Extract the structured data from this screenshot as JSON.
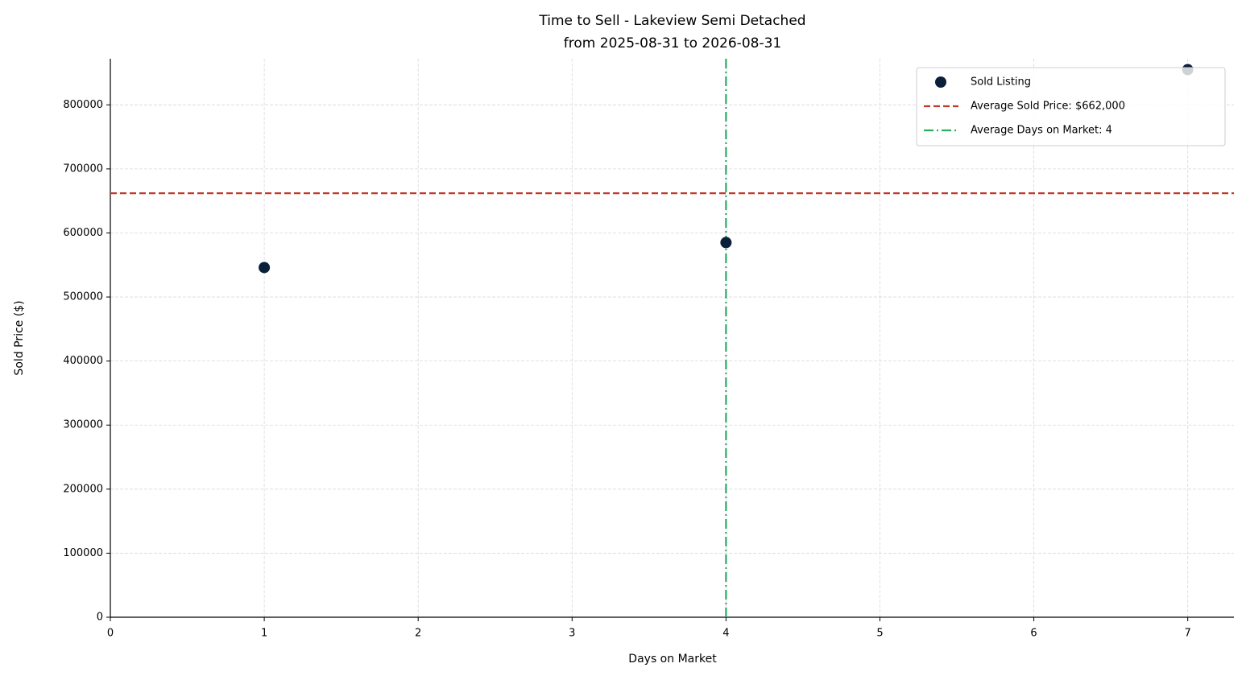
{
  "chart_data": {
    "type": "scatter",
    "title": "Time to Sell - Lakeview Semi Detached",
    "subtitle": "from 2025-08-31 to 2026-08-31",
    "xlabel": "Days on Market",
    "ylabel": "Sold Price ($)",
    "x": [
      1,
      4,
      7
    ],
    "series": [
      {
        "name": "Sold Listing",
        "color": "#0b1f3a",
        "values": [
          546000,
          585000,
          855000
        ]
      }
    ],
    "hline": {
      "value": 662000,
      "label": "Average Sold Price: $662,000",
      "color": "#c0392b"
    },
    "vline": {
      "value": 4,
      "label": "Average Days on Market: 4",
      "color": "#27ae60"
    },
    "xlim": [
      0,
      7.3
    ],
    "ylim": [
      0,
      872000
    ],
    "xticks": [
      0,
      1,
      2,
      3,
      4,
      5,
      6,
      7
    ],
    "yticks": [
      0,
      100000,
      200000,
      300000,
      400000,
      500000,
      600000,
      700000,
      800000
    ],
    "grid": true,
    "legend": "upper-right"
  }
}
